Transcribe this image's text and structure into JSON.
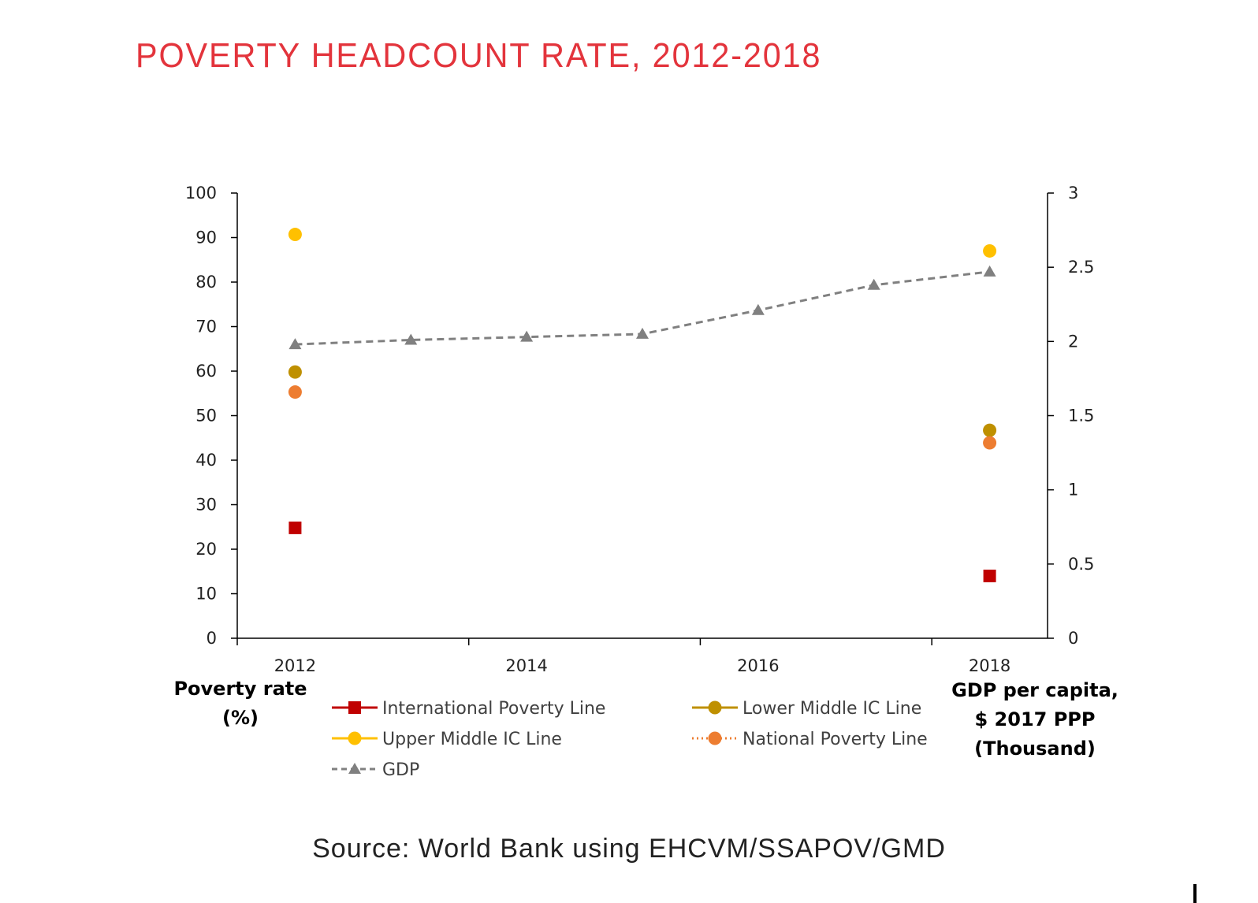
{
  "title": "POVERTY HEADCOUNT RATE, 2012-2018",
  "source": "Source: World Bank using EHCVM/SSAPOV/GMD",
  "left_axis_title": [
    "Poverty rate",
    "(%)"
  ],
  "right_axis_title": [
    "GDP per capita,",
    "$ 2017 PPP",
    "(Thousand)"
  ],
  "chart_data": {
    "type": "scatter",
    "x_ticks": [
      "2012",
      "2014",
      "2016",
      "2018"
    ],
    "y_left": {
      "ylim": [
        0,
        100
      ],
      "ticks": [
        "0",
        "10",
        "20",
        "30",
        "40",
        "50",
        "60",
        "70",
        "80",
        "90",
        "100"
      ]
    },
    "y_right": {
      "ylim": [
        0,
        3
      ],
      "ticks": [
        "0",
        "0.5",
        "1",
        "1.5",
        "2",
        "2.5",
        "3"
      ]
    },
    "grid": false,
    "legend_position": "bottom",
    "series": [
      {
        "name": "International Poverty Line",
        "axis": "left",
        "marker": "square",
        "color": "#c00000",
        "line": "solid",
        "points": [
          {
            "x": 2012,
            "y": 24.8
          },
          {
            "x": 2018,
            "y": 14.0
          }
        ]
      },
      {
        "name": "Lower Middle IC Line",
        "axis": "left",
        "marker": "circle",
        "color": "#bf9000",
        "line": "solid",
        "points": [
          {
            "x": 2012,
            "y": 59.8
          },
          {
            "x": 2018,
            "y": 46.7
          }
        ]
      },
      {
        "name": "Upper Middle IC Line",
        "axis": "left",
        "marker": "circle",
        "color": "#ffc000",
        "line": "solid",
        "points": [
          {
            "x": 2012,
            "y": 90.7
          },
          {
            "x": 2018,
            "y": 87.0
          }
        ]
      },
      {
        "name": "National Poverty Line",
        "axis": "left",
        "marker": "circle",
        "color": "#ed7d31",
        "line": "dotted",
        "points": [
          {
            "x": 2012,
            "y": 55.3
          },
          {
            "x": 2018,
            "y": 43.9
          }
        ]
      },
      {
        "name": "GDP",
        "axis": "right",
        "marker": "triangle",
        "color": "#808080",
        "line": "dashed",
        "connected": true,
        "points": [
          {
            "x": 2012,
            "y": 1.98
          },
          {
            "x": 2013,
            "y": 2.01
          },
          {
            "x": 2014,
            "y": 2.03
          },
          {
            "x": 2015,
            "y": 2.05
          },
          {
            "x": 2016,
            "y": 2.21
          },
          {
            "x": 2017,
            "y": 2.38
          },
          {
            "x": 2018,
            "y": 2.47
          }
        ]
      }
    ]
  }
}
